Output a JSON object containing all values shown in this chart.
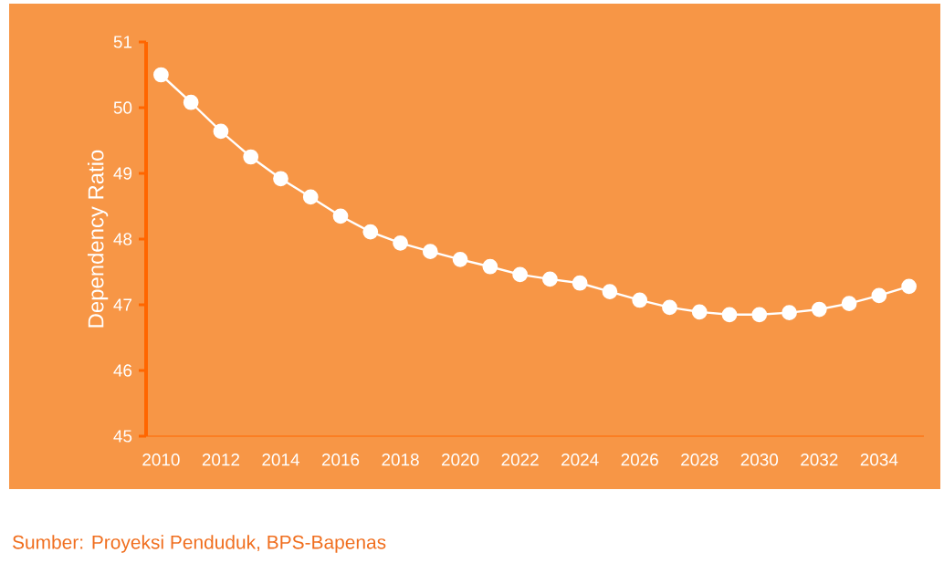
{
  "chart_data": {
    "type": "line",
    "ylabel": "Dependency Ratio",
    "color": "#ffffff",
    "marker": "circle",
    "x": [
      2010,
      2011,
      2012,
      2013,
      2014,
      2015,
      2016,
      2017,
      2018,
      2019,
      2020,
      2021,
      2022,
      2023,
      2024,
      2025,
      2026,
      2027,
      2028,
      2029,
      2030,
      2031,
      2032,
      2033,
      2034,
      2035
    ],
    "values": [
      50.5,
      50.08,
      49.64,
      49.25,
      48.92,
      48.64,
      48.35,
      48.11,
      47.94,
      47.81,
      47.69,
      47.58,
      47.46,
      47.39,
      47.33,
      47.2,
      47.07,
      46.96,
      46.89,
      46.85,
      46.85,
      46.88,
      46.93,
      47.02,
      47.14,
      47.28
    ],
    "ylim": [
      45,
      51
    ],
    "xlim": [
      2009.5,
      2035.5
    ],
    "xticks": [
      2010,
      2012,
      2014,
      2016,
      2018,
      2020,
      2022,
      2024,
      2026,
      2028,
      2030,
      2032,
      2034
    ],
    "yticks": [
      45,
      46,
      47,
      48,
      49,
      50,
      51
    ],
    "annotations": [
      "Sumber: Proyeksi Penduduk, BPS-Bapenas"
    ]
  }
}
